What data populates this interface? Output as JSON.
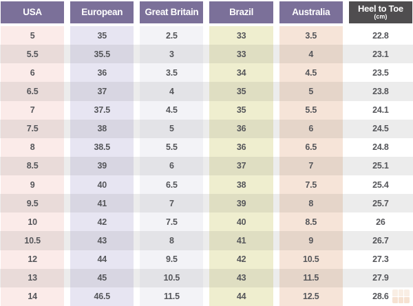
{
  "chart_data": {
    "type": "table",
    "title": "",
    "columns": [
      "USA",
      "European",
      "Great Britain",
      "Brazil",
      "Australia",
      "Heel to Toe (cm)"
    ],
    "rows": [
      [
        "5",
        "35",
        "2.5",
        "33",
        "3.5",
        "22.8"
      ],
      [
        "5.5",
        "35.5",
        "3",
        "33",
        "4",
        "23.1"
      ],
      [
        "6",
        "36",
        "3.5",
        "34",
        "4.5",
        "23.5"
      ],
      [
        "6.5",
        "37",
        "4",
        "35",
        "5",
        "23.8"
      ],
      [
        "7",
        "37.5",
        "4.5",
        "35",
        "5.5",
        "24.1"
      ],
      [
        "7.5",
        "38",
        "5",
        "36",
        "6",
        "24.5"
      ],
      [
        "8",
        "38.5",
        "5.5",
        "36",
        "6.5",
        "24.8"
      ],
      [
        "8.5",
        "39",
        "6",
        "37",
        "7",
        "25.1"
      ],
      [
        "9",
        "40",
        "6.5",
        "38",
        "7.5",
        "25.4"
      ],
      [
        "9.5",
        "41",
        "7",
        "39",
        "8",
        "25.7"
      ],
      [
        "10",
        "42",
        "7.5",
        "40",
        "8.5",
        "26"
      ],
      [
        "10.5",
        "43",
        "8",
        "41",
        "9",
        "26.7"
      ],
      [
        "12",
        "44",
        "9.5",
        "42",
        "10.5",
        "27.3"
      ],
      [
        "13",
        "45",
        "10.5",
        "43",
        "11.5",
        "27.9"
      ],
      [
        "14",
        "46.5",
        "11.5",
        "44",
        "12.5",
        "28.6"
      ]
    ]
  },
  "header": {
    "cols": [
      {
        "label": "USA"
      },
      {
        "label": "European"
      },
      {
        "label": "Great Britain"
      },
      {
        "label": "Brazil"
      },
      {
        "label": "Australia"
      },
      {
        "label": "Heel to Toe",
        "sublabel": "(cm)"
      }
    ]
  },
  "colors": {
    "header_bg": "#7b7099",
    "header_dark_bg": "#4f4d4f",
    "header_text": "#ffffff",
    "cell_text": "#55565a",
    "even_row_stripe": "#ececec",
    "column_bands_odd": [
      "#fbebe9",
      "#e7e5f2",
      "#f3f3f7",
      "#efeecf",
      "#f6e4d8",
      "#ffffff"
    ],
    "column_bands_even": [
      "#e9dbd9",
      "#d8d6e2",
      "#e3e3e7",
      "#dfdec2",
      "#e5d5c9",
      "#ececec"
    ]
  },
  "watermark": {
    "icon": "grid-logo-icon",
    "color": "#e0995f"
  }
}
